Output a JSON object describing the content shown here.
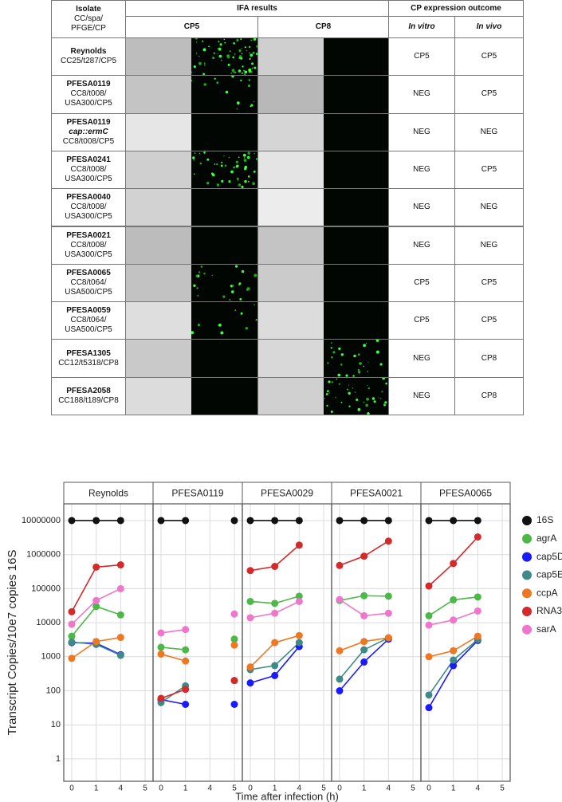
{
  "table": {
    "header": {
      "isolate": "Isolate",
      "isolate_sub": [
        "CC/spa/",
        "PFGE/CP"
      ],
      "ifa": "IFA results",
      "outcome": "CP expression outcome",
      "cp5": "CP5",
      "cp8": "CP8",
      "in_vitro": "In vitro",
      "in_vivo": "In vivo"
    },
    "rows": [
      {
        "name": "Reynolds",
        "lines": [
          "CC25/t287/CP5"
        ],
        "in_vitro": "CP5",
        "in_vivo": "CP5"
      },
      {
        "name": "PFESA0119",
        "lines": [
          "CC8/t008/",
          "USA300/CP5"
        ],
        "in_vitro": "NEG",
        "in_vivo": "CP5"
      },
      {
        "name": "PFESA0119",
        "lines": [
          "cap::ermC",
          "CC8/t008/CP5"
        ],
        "in_vitro": "NEG",
        "in_vivo": "NEG"
      },
      {
        "name": "PFESA0241",
        "lines": [
          "CC8/t008/",
          "USA300/CP5"
        ],
        "in_vitro": "NEG",
        "in_vivo": "CP5"
      },
      {
        "name": "PFESA0040",
        "lines": [
          "CC8/t008/",
          "USA300/CP5"
        ],
        "in_vitro": "NEG",
        "in_vivo": "NEG"
      },
      {
        "name": "PFESA0021",
        "lines": [
          "CC8/t008/",
          "USA300/CP5"
        ],
        "in_vitro": "NEG",
        "in_vivo": "NEG"
      },
      {
        "name": "PFESA0065",
        "lines": [
          "CC8/t064/",
          "USA500/CP5"
        ],
        "in_vitro": "CP5",
        "in_vivo": "CP5"
      },
      {
        "name": "PFESA0059",
        "lines": [
          "CC8/t064/",
          "USA500/CP5"
        ],
        "in_vitro": "CP5",
        "in_vivo": "CP5"
      },
      {
        "name": "PFESA1305",
        "lines": [
          "CC12/t5318/CP8"
        ],
        "in_vitro": "NEG",
        "in_vivo": "CP8"
      },
      {
        "name": "PFESA2058",
        "lines": [
          "CC188/t189/CP8"
        ],
        "in_vitro": "NEG",
        "in_vivo": "CP8"
      }
    ]
  },
  "chart_data": {
    "type": "line",
    "y_label": "Transcript Copies/10e7 copies 16S",
    "x_label": "Time  after infection (h)",
    "panels": [
      "Reynolds",
      "PFESA0119",
      "PFESA0029",
      "PFESA0021",
      "PFESA0065"
    ],
    "categories": [
      "0",
      "1",
      "4",
      "5"
    ],
    "log_scale": true,
    "grid": true,
    "ylim": [
      0.22,
      31000000
    ],
    "yticks": [
      1,
      10,
      100,
      1000,
      10000,
      100000,
      1000000,
      10000000
    ],
    "series": [
      {
        "name": "16S",
        "color": "#111111",
        "values": [
          [
            10000000,
            10000000,
            10000000,
            null
          ],
          [
            10000000,
            10000000,
            null,
            10000000
          ],
          [
            10000000,
            10000000,
            10000000,
            null
          ],
          [
            10000000,
            10000000,
            10000000,
            null
          ],
          [
            10000000,
            10000000,
            10000000,
            null
          ]
        ]
      },
      {
        "name": "agrA",
        "color": "#4db848",
        "values": [
          [
            4000,
            30000,
            17000,
            null
          ],
          [
            1900,
            1600,
            null,
            3300
          ],
          [
            42000,
            37000,
            60000,
            null
          ],
          [
            45000,
            62000,
            60000,
            null
          ],
          [
            16000,
            47000,
            57000,
            null
          ]
        ]
      },
      {
        "name": "cap5D",
        "color": "#1a1aff",
        "values": [
          [
            2600,
            2500,
            1150,
            null
          ],
          [
            55,
            40,
            null,
            40
          ],
          [
            170,
            280,
            2000,
            null
          ],
          [
            100,
            700,
            3300,
            null
          ],
          [
            32,
            550,
            3000,
            null
          ]
        ]
      },
      {
        "name": "cap5E",
        "color": "#3d8a87",
        "values": [
          [
            2700,
            2300,
            1100,
            null
          ],
          [
            45,
            140,
            null,
            200
          ],
          [
            420,
            550,
            2600,
            null
          ],
          [
            220,
            1600,
            3600,
            null
          ],
          [
            75,
            800,
            3200,
            null
          ]
        ]
      },
      {
        "name": "ccpA",
        "color": "#ee7722",
        "values": [
          [
            900,
            2800,
            3700,
            null
          ],
          [
            1200,
            750,
            null,
            2200
          ],
          [
            500,
            2600,
            4200,
            null
          ],
          [
            1500,
            2800,
            3600,
            null
          ],
          [
            1000,
            1500,
            4000,
            null
          ]
        ]
      },
      {
        "name": "RNA3",
        "color": "#d42a2a",
        "values": [
          [
            21000,
            430000,
            500000,
            null
          ],
          [
            60,
            110,
            null,
            200
          ],
          [
            340000,
            450000,
            1900000,
            null
          ],
          [
            480000,
            900000,
            2500000,
            null
          ],
          [
            120000,
            550000,
            3300000,
            null
          ]
        ]
      },
      {
        "name": "sarA",
        "color": "#ee77cc",
        "values": [
          [
            9000,
            45000,
            100000,
            null
          ],
          [
            5000,
            6300,
            null,
            18000
          ],
          [
            14000,
            19000,
            42000,
            null
          ],
          [
            48000,
            16000,
            19000,
            null
          ],
          [
            8500,
            12000,
            22000,
            null
          ]
        ]
      }
    ]
  }
}
